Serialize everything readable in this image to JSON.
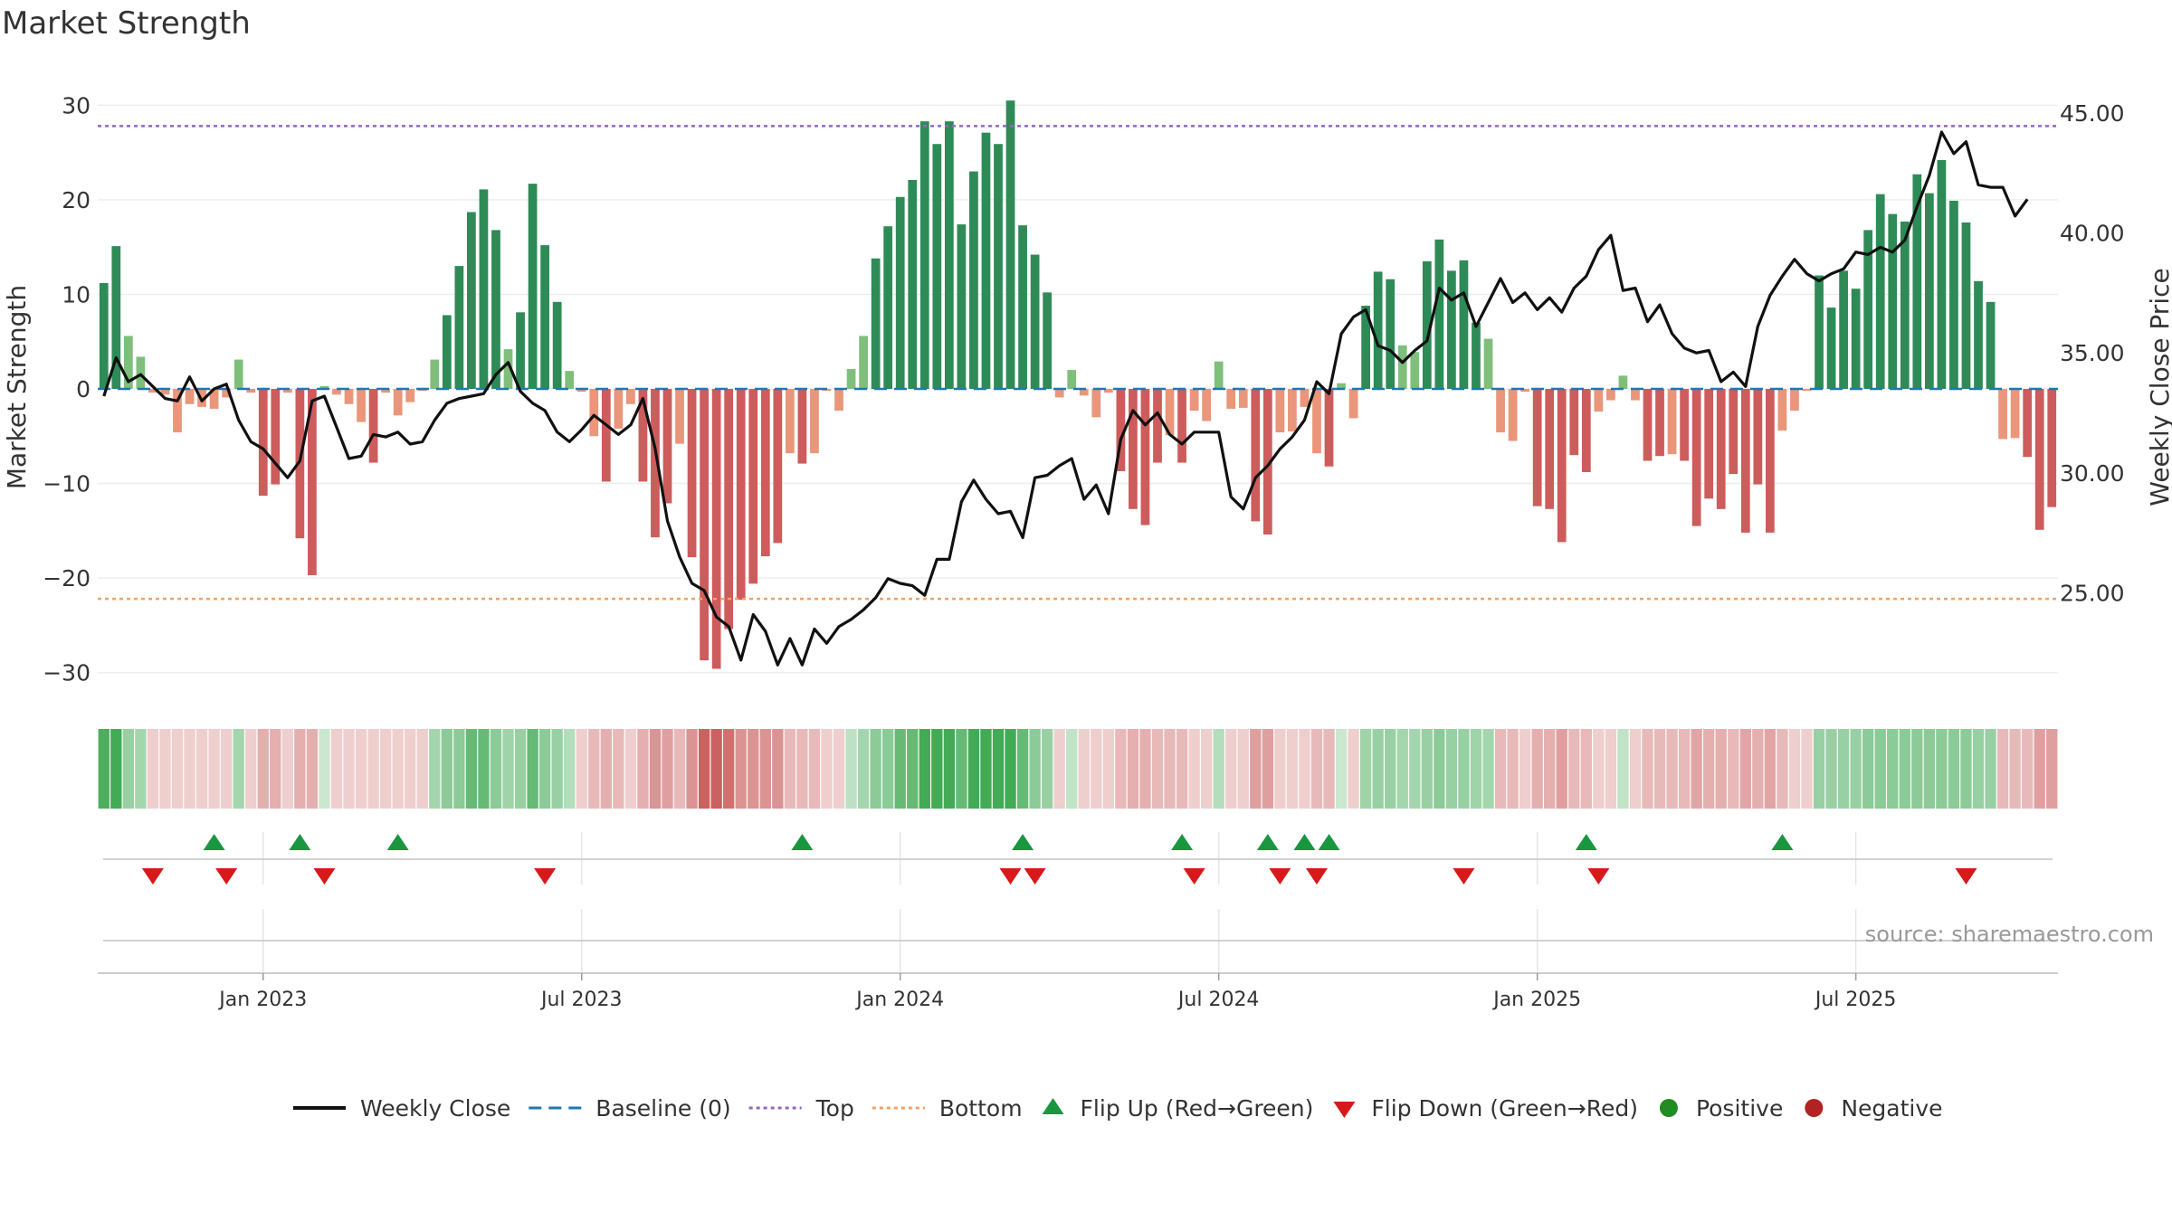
{
  "chart_data": {
    "type": "bar",
    "title": "Market Strength",
    "ylabel": "Market Strength",
    "ylabel_right": "Weekly Close Price",
    "ylim": [
      -33,
      33
    ],
    "ylim_right": [
      20.5,
      46.5
    ],
    "yticks": [
      30,
      20,
      10,
      0,
      -10,
      -20,
      -30
    ],
    "ytick_labels": [
      "30",
      "20",
      "10",
      "0",
      "−10",
      "−20",
      "−30"
    ],
    "yticks_right": [
      45,
      40,
      35,
      30,
      25
    ],
    "ytick_labels_right": [
      "45.00",
      "40.00",
      "35.00",
      "30.00",
      "25.00"
    ],
    "top_level": 27.8,
    "bottom_level": -22.2,
    "x_tick_labels": [
      "Jan 2023",
      "Jul 2023",
      "Jan 2024",
      "Jul 2024",
      "Jan 2025",
      "Jul 2025"
    ],
    "x_tick_weeks": [
      13,
      39,
      65,
      91,
      117,
      143
    ],
    "source": "source: sharemaestro.com",
    "legend": [
      "Weekly Close",
      "Baseline (0)",
      "Top",
      "Bottom",
      "Flip Up (Red→Green)",
      "Flip Down (Green→Red)",
      "Positive",
      "Negative"
    ],
    "strength": [
      11.2,
      15.1,
      5.6,
      3.4,
      -0.4,
      -0.6,
      -4.6,
      -1.6,
      -1.9,
      -2.1,
      -0.9,
      3.1,
      -0.4,
      -11.3,
      -10.1,
      -0.4,
      -15.8,
      -19.7,
      0.3,
      -0.6,
      -1.6,
      -3.5,
      -7.8,
      -0.4,
      -2.8,
      -1.4,
      -0.2,
      3.1,
      7.8,
      13.0,
      18.7,
      21.1,
      16.8,
      4.2,
      8.1,
      21.7,
      15.2,
      9.2,
      1.9,
      -0.3,
      -5.0,
      -9.8,
      -4.2,
      -1.6,
      -9.8,
      -15.7,
      -12.1,
      -5.8,
      -17.8,
      -28.7,
      -29.6,
      -25.4,
      -22.3,
      -20.6,
      -17.7,
      -16.3,
      -6.8,
      -7.9,
      -6.8,
      -0.2,
      -2.3,
      2.1,
      5.6,
      13.8,
      17.2,
      20.3,
      22.1,
      28.3,
      25.9,
      28.3,
      17.4,
      23.0,
      27.1,
      25.9,
      30.5,
      17.3,
      14.2,
      10.2,
      -0.9,
      2.0,
      -0.7,
      -3.0,
      -0.4,
      -8.7,
      -12.7,
      -14.4,
      -7.8,
      -4.9,
      -7.8,
      -2.3,
      -3.4,
      2.9,
      -2.1,
      -2.0,
      -14.0,
      -15.4,
      -4.6,
      -4.5,
      -1.9,
      -6.8,
      -8.2,
      0.6,
      -3.1,
      8.8,
      12.4,
      11.6,
      4.6,
      3.9,
      13.5,
      15.8,
      12.5,
      13.6,
      7.0,
      5.3,
      -4.6,
      -5.5,
      -0.3,
      -12.4,
      -12.7,
      -16.2,
      -7.0,
      -8.8,
      -2.4,
      -1.2,
      1.4,
      -1.2,
      -7.6,
      -7.1,
      -6.9,
      -7.6,
      -14.5,
      -11.6,
      -12.7,
      -9.0,
      -15.2,
      -10.1,
      -15.2,
      -4.4,
      -2.3,
      -0.2,
      12.0,
      8.6,
      12.5,
      10.6,
      16.8,
      20.6,
      18.5,
      17.7,
      22.7,
      20.7,
      24.2,
      19.9,
      17.6,
      11.4,
      9.2,
      -5.3,
      -5.2,
      -7.2,
      -14.9,
      -12.5
    ],
    "close": [
      33.2,
      34.8,
      33.8,
      34.1,
      33.6,
      33.1,
      33.0,
      34.0,
      33.0,
      33.5,
      33.7,
      32.2,
      31.3,
      31.0,
      30.4,
      29.8,
      30.5,
      33.0,
      33.2,
      31.9,
      30.6,
      30.7,
      31.6,
      31.5,
      31.7,
      31.2,
      31.3,
      32.2,
      32.9,
      33.1,
      33.2,
      33.3,
      34.1,
      34.6,
      33.4,
      32.9,
      32.6,
      31.7,
      31.3,
      31.8,
      32.4,
      32.0,
      31.6,
      32.0,
      33.1,
      31.0,
      28.0,
      26.5,
      25.4,
      25.1,
      24.0,
      23.6,
      22.2,
      24.1,
      23.4,
      22.0,
      23.1,
      22.0,
      23.5,
      22.9,
      23.6,
      23.9,
      24.3,
      24.8,
      25.6,
      25.4,
      25.3,
      24.9,
      26.4,
      26.4,
      28.8,
      29.7,
      28.9,
      28.3,
      28.4,
      27.3,
      29.8,
      29.9,
      30.3,
      30.6,
      28.9,
      29.5,
      28.3,
      31.4,
      32.6,
      32.0,
      32.5,
      31.6,
      31.2,
      31.7,
      31.7,
      31.7,
      29.0,
      28.5,
      29.8,
      30.3,
      31.0,
      31.5,
      32.2,
      33.8,
      33.3,
      35.8,
      36.5,
      36.8,
      35.3,
      35.1,
      34.6,
      35.1,
      35.5,
      37.7,
      37.2,
      37.5,
      36.1,
      37.1,
      38.1,
      37.1,
      37.5,
      36.8,
      37.3,
      36.7,
      37.7,
      38.2,
      39.3,
      39.9,
      37.6,
      37.7,
      36.3,
      37.0,
      35.8,
      35.2,
      35.0,
      35.1,
      33.8,
      34.2,
      33.6,
      36.1,
      37.4,
      38.2,
      38.9,
      38.3,
      38.0,
      38.3,
      38.5,
      39.2,
      39.1,
      39.4,
      39.2,
      39.7,
      41.1,
      42.4,
      44.2,
      43.3,
      43.8,
      42.0,
      41.9,
      41.9,
      40.7,
      41.4
    ],
    "shade_strength": [
      3.1,
      3.2,
      2.1,
      1.9,
      -1.0,
      -1.0,
      -1.0,
      -1.0,
      -1.0,
      -1.0,
      -1.0,
      1.9,
      -1.0,
      -1.8,
      -1.8,
      -1.0,
      -1.8,
      -1.8,
      1.0,
      -1.0,
      -1.0,
      -1.0,
      -1.0,
      -1.0,
      -1.0,
      -1.0,
      -1.0,
      1.9,
      2.3,
      2.3,
      2.8,
      2.8,
      2.3,
      2.0,
      2.1,
      2.8,
      2.3,
      2.1,
      1.6,
      -1.0,
      -1.6,
      -1.8,
      -1.6,
      -1.0,
      -1.8,
      -2.3,
      -2.1,
      -1.6,
      -2.3,
      -3.0,
      -3.0,
      -2.8,
      -2.3,
      -2.3,
      -2.3,
      -2.3,
      -1.6,
      -1.6,
      -1.6,
      -1.0,
      -1.0,
      1.4,
      1.9,
      2.3,
      2.3,
      2.8,
      2.8,
      3.2,
      3.2,
      3.2,
      2.8,
      3.2,
      3.2,
      3.2,
      3.2,
      2.8,
      2.3,
      2.1,
      -1.0,
      1.3,
      -1.0,
      -1.0,
      -1.0,
      -1.6,
      -1.8,
      -1.8,
      -1.6,
      -1.6,
      -1.6,
      -1.0,
      -1.0,
      1.6,
      -1.0,
      -1.0,
      -2.1,
      -2.1,
      -1.0,
      -1.0,
      -1.0,
      -1.6,
      -1.6,
      1.0,
      -1.0,
      2.0,
      2.1,
      2.1,
      1.9,
      1.9,
      2.1,
      2.3,
      2.1,
      2.1,
      2.0,
      1.9,
      -1.6,
      -1.6,
      -1.0,
      -1.8,
      -1.8,
      -2.1,
      -1.6,
      -1.6,
      -1.0,
      -1.0,
      1.3,
      -1.0,
      -1.6,
      -1.6,
      -1.6,
      -1.6,
      -2.0,
      -1.8,
      -1.8,
      -1.6,
      -2.0,
      -1.8,
      -2.0,
      -1.6,
      -1.0,
      -1.0,
      2.1,
      2.1,
      2.1,
      2.1,
      2.3,
      2.3,
      2.3,
      2.3,
      2.3,
      2.3,
      2.3,
      2.3,
      2.3,
      2.1,
      2.1,
      -1.6,
      -1.6,
      -1.6,
      -2.1,
      -2.1
    ],
    "flip_up_weeks": [
      9,
      16,
      24,
      57,
      75,
      88,
      95,
      98,
      100,
      121,
      137
    ],
    "flip_down_weeks": [
      4,
      10,
      18,
      36,
      74,
      76,
      89,
      96,
      99,
      111,
      122,
      152
    ]
  },
  "colors": {
    "strong_green": "#2e8b57",
    "light_green": "#7fbf7b",
    "strong_red": "#cd5c5c",
    "light_red": "#e9967a",
    "close_line": "#111111",
    "baseline": "#1f77b4",
    "top": "#9467bd",
    "bottom": "#f4a261",
    "flip_up": "#1a9641",
    "flip_down": "#d7191c",
    "positive": "#228b22",
    "negative": "#b22222",
    "text": "#333333",
    "grid": "#eeeeee"
  }
}
